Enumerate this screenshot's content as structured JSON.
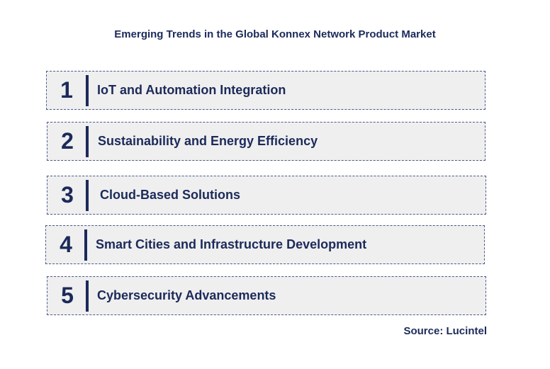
{
  "title": "Emerging Trends in the Global Konnex Network Product Market",
  "trends": [
    {
      "number": "1",
      "label": "IoT and Automation Integration"
    },
    {
      "number": "2",
      "label": "Sustainability and Energy Efficiency"
    },
    {
      "number": "3",
      "label": "Cloud-Based Solutions"
    },
    {
      "number": "4",
      "label": "Smart Cities and Infrastructure Development"
    },
    {
      "number": "5",
      "label": "Cybersecurity Advancements"
    }
  ],
  "source": "Source: Lucintel",
  "colors": {
    "text": "#1b2a5a",
    "box_fill": "#efefef",
    "box_border": "#4a5a8a"
  }
}
